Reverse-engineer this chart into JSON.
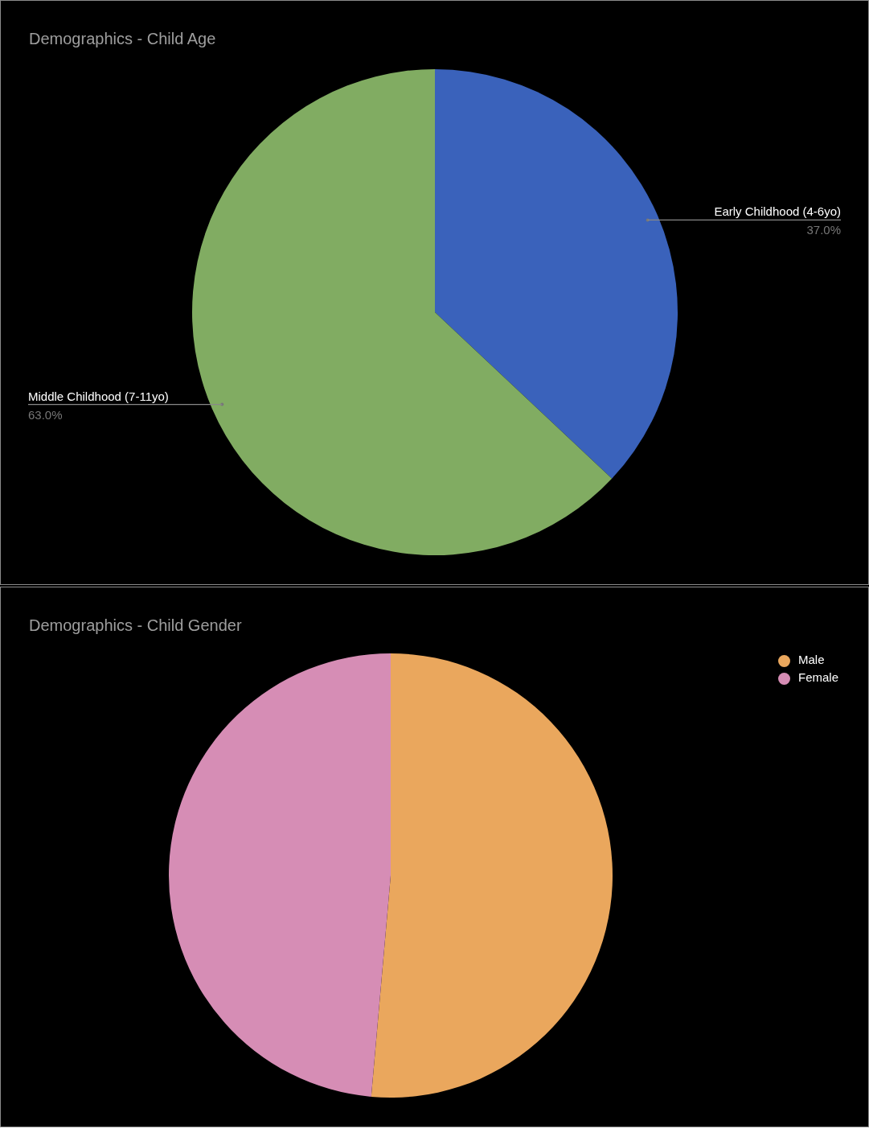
{
  "chart_data": [
    {
      "type": "pie",
      "title": "Demographics - Child Age",
      "categories": [
        "Early Childhood (4-6yo)",
        "Middle Childhood (7-11yo)"
      ],
      "values": [
        37.0,
        63.0
      ],
      "colors": [
        "#3a62bb",
        "#81ac62"
      ],
      "value_labels": [
        "37.0%",
        "63.0%"
      ],
      "legend": false
    },
    {
      "type": "pie",
      "title": "Demographics - Child Gender",
      "categories": [
        "Male",
        "Female"
      ],
      "values": [
        51.4,
        48.6
      ],
      "colors": [
        "#eaa75d",
        "#d68db5"
      ],
      "legend": "top right"
    }
  ]
}
